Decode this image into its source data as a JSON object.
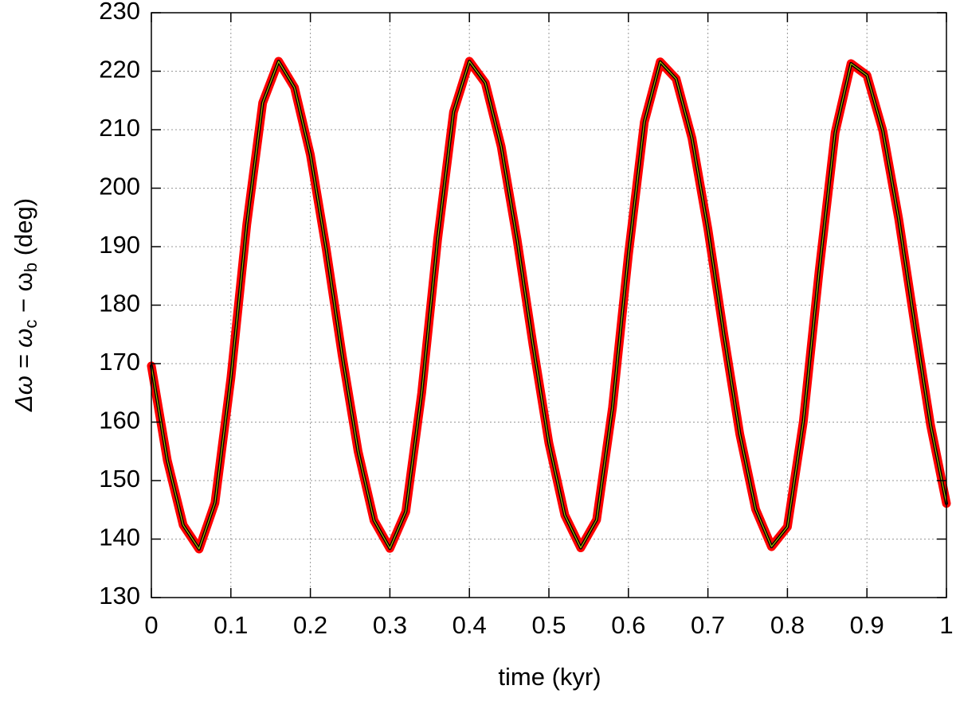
{
  "chart_data": {
    "type": "line",
    "xlabel": "time (kyr)",
    "ylabel": [
      "Δω = ω",
      "c",
      " − ω",
      "b",
      " (deg)"
    ],
    "x": [
      0,
      0.02,
      0.04,
      0.06,
      0.08,
      0.1,
      0.12,
      0.14,
      0.16,
      0.18,
      0.2,
      0.22,
      0.24,
      0.26,
      0.28,
      0.3,
      0.32,
      0.34,
      0.36,
      0.38,
      0.4,
      0.42,
      0.44,
      0.46,
      0.48,
      0.5,
      0.52,
      0.54,
      0.56,
      0.58,
      0.6,
      0.62,
      0.64,
      0.66,
      0.68,
      0.7,
      0.72,
      0.74,
      0.76,
      0.78,
      0.8,
      0.82,
      0.84,
      0.86,
      0.88,
      0.9,
      0.92,
      0.94,
      0.96,
      0.98,
      1
    ],
    "series": [
      {
        "color": "#000000",
        "band_color": "#ff0000",
        "inner_color": "#a8b800",
        "values": [
          169.6,
          153.5,
          142.4,
          138.3,
          146.2,
          167.5,
          193.8,
          214.6,
          221.7,
          217.2,
          205.7,
          189.5,
          171.4,
          155.0,
          143.2,
          138.4,
          144.7,
          165.0,
          191.2,
          213.0,
          221.7,
          218.0,
          207.1,
          191.2,
          173.2,
          156.4,
          144.1,
          138.5,
          143.3,
          162.5,
          188.6,
          211.3,
          221.6,
          218.7,
          208.5,
          193.0,
          175.0,
          158.0,
          145.1,
          138.7,
          142.1,
          160.1,
          186.0,
          209.5,
          221.3,
          219.3,
          209.8,
          194.7,
          176.8,
          159.5,
          146.1
        ]
      }
    ],
    "xlim": [
      0,
      1
    ],
    "xticks": [
      0,
      0.1,
      0.2,
      0.3,
      0.4,
      0.5,
      0.6,
      0.7,
      0.8,
      0.9,
      1
    ],
    "ylim": [
      130,
      230
    ],
    "yticks": [
      130,
      140,
      150,
      160,
      170,
      180,
      190,
      200,
      210,
      220,
      230
    ],
    "grid": true
  }
}
